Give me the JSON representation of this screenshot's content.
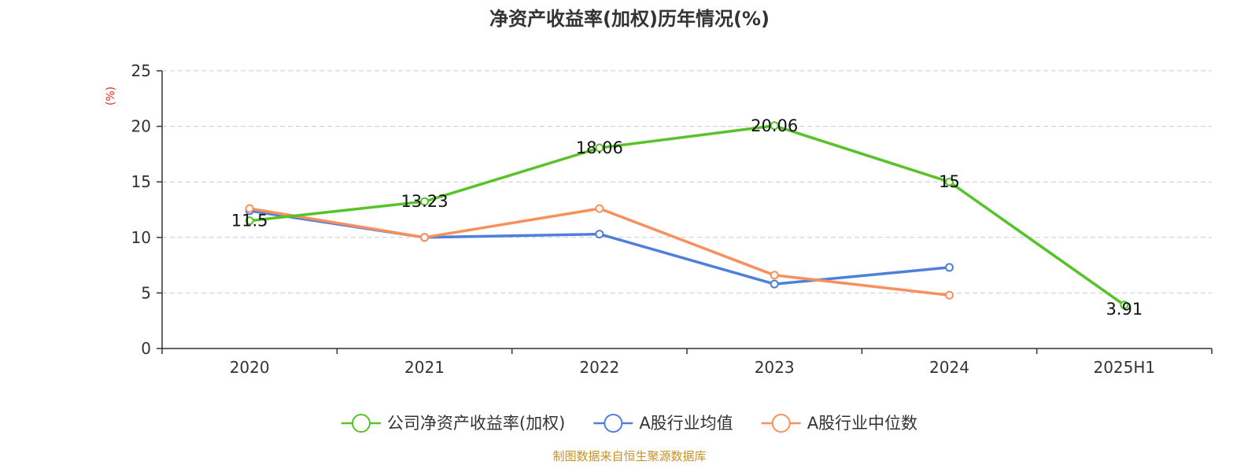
{
  "chart_data": {
    "type": "line",
    "title": "净资产收益率(加权)历年情况(%)",
    "y_unit_label": "(%)",
    "categories": [
      "2020",
      "2021",
      "2022",
      "2023",
      "2024",
      "2025H1"
    ],
    "ylim": [
      0,
      25
    ],
    "yticks": [
      "0",
      "5",
      "10",
      "15",
      "20",
      "25"
    ],
    "grid": "horizontal-dashed",
    "legend_position": "bottom",
    "series": [
      {
        "name": "公司净资产收益率(加权)",
        "color": "#58c22a",
        "values": [
          11.5,
          13.23,
          18.06,
          20.06,
          15,
          3.91
        ],
        "data_labels": [
          "11.5",
          "13.23",
          "18.06",
          "20.06",
          "15",
          "3.91"
        ]
      },
      {
        "name": "A股行业均值",
        "color": "#4f7fdc",
        "values": [
          12.4,
          10.0,
          10.3,
          5.8,
          7.3,
          null
        ]
      },
      {
        "name": "A股行业中位数",
        "color": "#f7905c",
        "values": [
          12.6,
          10.0,
          12.6,
          6.6,
          4.8,
          null
        ]
      }
    ],
    "source_note": "制图数据来自恒生聚源数据库"
  }
}
